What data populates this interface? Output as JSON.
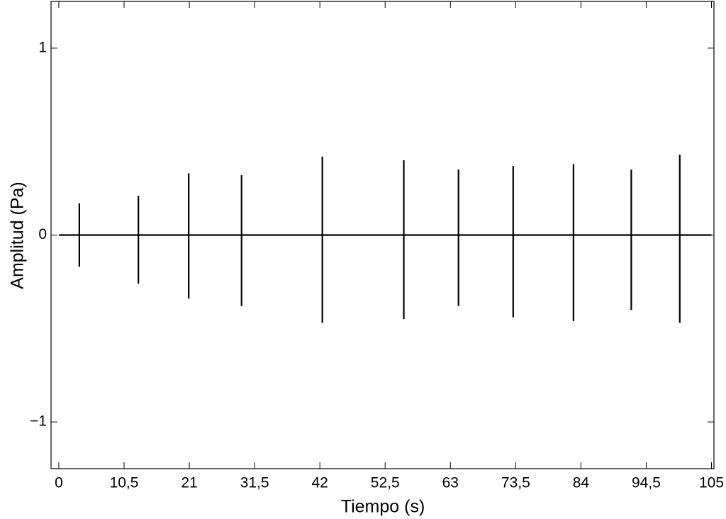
{
  "chart_data": {
    "type": "line",
    "xlabel": "Tiempo (s)",
    "ylabel": "Amplitud (Pa)",
    "x": [
      0,
      3.3,
      3.3,
      3.3,
      3.3,
      12.8,
      12.8,
      12.8,
      12.8,
      20.9,
      20.9,
      20.9,
      20.9,
      29.4,
      29.4,
      29.4,
      29.4,
      42.4,
      42.4,
      42.4,
      42.4,
      55.5,
      55.5,
      55.5,
      55.5,
      64.3,
      64.3,
      64.3,
      64.3,
      73.1,
      73.1,
      73.1,
      73.1,
      82.8,
      82.8,
      82.8,
      82.8,
      92.1,
      92.1,
      92.1,
      92.1,
      99.9,
      99.9,
      99.9,
      99.9,
      105
    ],
    "values": [
      0,
      0,
      0.17,
      -0.17,
      0,
      0,
      0.21,
      -0.26,
      0,
      0,
      0.33,
      -0.34,
      0,
      0,
      0.32,
      -0.38,
      0,
      0,
      0.42,
      -0.47,
      0,
      0,
      0.4,
      -0.45,
      0,
      0,
      0.35,
      -0.38,
      0,
      0,
      0.37,
      -0.44,
      0,
      0,
      0.38,
      -0.46,
      0,
      0,
      0.35,
      -0.4,
      0,
      0,
      0.43,
      -0.47,
      0,
      0
    ],
    "color": "#000000",
    "xlim": [
      -1.25,
      105.4
    ],
    "ylim": [
      -1.25,
      1.25
    ],
    "xticks": [
      0,
      {
        "value": 10.5,
        "label": "10,5"
      },
      21,
      {
        "value": 31.5,
        "label": "31,5"
      },
      42,
      {
        "value": 52.5,
        "label": "52,5"
      },
      63,
      {
        "value": 73.5,
        "label": "73,5"
      },
      84,
      {
        "value": 94.5,
        "label": "94,5"
      },
      105
    ],
    "yticks": [
      {
        "value": -1,
        "label": "−1"
      },
      0,
      1
    ]
  }
}
